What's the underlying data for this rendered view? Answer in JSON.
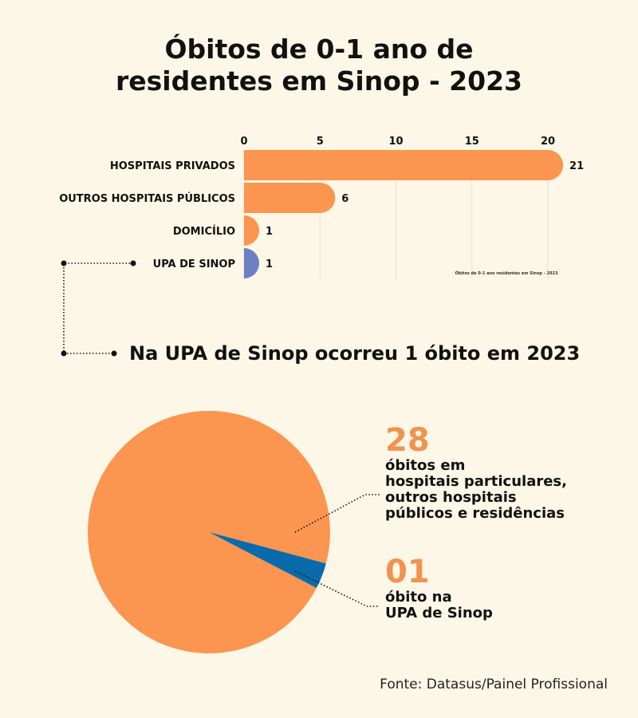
{
  "title_lines": [
    "Óbitos de 0-1 ano de",
    "residentes em Sinop - 2023"
  ],
  "headline": "Na UPA de Sinop ocorreu 1 óbito em 2023",
  "source": "Fonte: Datasus/Painel Profissional",
  "annotations": {
    "others": {
      "number": "28",
      "lines": [
        "óbitos em",
        "hospitais particulares,",
        "outros hospitais",
        "públicos e residências"
      ]
    },
    "upa": {
      "number": "01",
      "lines": [
        "óbito na",
        "UPA de Sinop"
      ]
    }
  },
  "colors": {
    "orange": "#fb9550",
    "purple_blue": "#6c80c4",
    "blue": "#0a6bab",
    "accent_text": "#f0934f"
  },
  "chart_data": [
    {
      "type": "bar",
      "orientation": "horizontal",
      "categories": [
        "HOSPITAIS PRIVADOS",
        "OUTROS HOSPITAIS PÚBLICOS",
        "DOMICÍLIO",
        "UPA DE SINOP"
      ],
      "values": [
        21,
        6,
        1,
        1
      ],
      "xticks": [
        0,
        5,
        10,
        15,
        20
      ],
      "xlim": [
        0,
        21
      ],
      "axis_position": "top",
      "grid": true,
      "watermark": "Óbitos de 0-1 ano residentes em Sinop - 2023"
    },
    {
      "type": "pie",
      "labels": [
        "óbitos em hospitais particulares, outros hospitais públicos e residências",
        "óbito na UPA de Sinop"
      ],
      "values": [
        28,
        1
      ]
    }
  ]
}
